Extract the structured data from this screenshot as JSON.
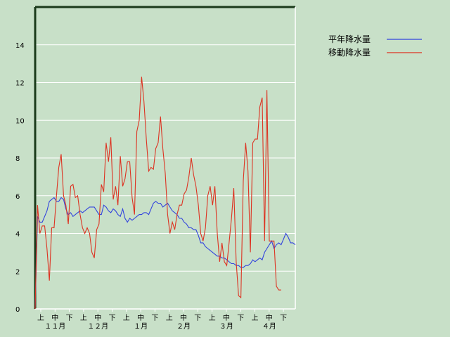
{
  "chart_data": {
    "type": "line",
    "title": "",
    "xlabel": "",
    "ylabel": "",
    "ylim": [
      0,
      16
    ],
    "yticks": [
      0,
      2,
      4,
      6,
      8,
      10,
      12,
      14
    ],
    "grid": true,
    "legend_position": "top-right",
    "x_sub_labels": [
      "上",
      "中",
      "下",
      "上",
      "中",
      "下",
      "上",
      "中",
      "下",
      "上",
      "中",
      "下",
      "上",
      "中",
      "下",
      "上",
      "中",
      "下"
    ],
    "x_month_labels": [
      "１１月",
      "１２月",
      "１月",
      "２月",
      "３月",
      "４月"
    ],
    "series": [
      {
        "name": "平年降水量",
        "color": "#3344dd",
        "values": [
          0.0,
          4.9,
          4.6,
          4.6,
          4.9,
          5.2,
          5.7,
          5.8,
          5.9,
          5.7,
          5.7,
          5.9,
          5.8,
          5.3,
          5.0,
          5.1,
          4.9,
          5.0,
          5.1,
          5.2,
          5.1,
          5.2,
          5.3,
          5.4,
          5.4,
          5.4,
          5.2,
          5.0,
          5.0,
          5.5,
          5.4,
          5.2,
          5.1,
          5.3,
          5.2,
          5.0,
          4.9,
          5.3,
          4.8,
          4.6,
          4.8,
          4.7,
          4.8,
          4.9,
          5.0,
          5.0,
          5.1,
          5.1,
          5.0,
          5.3,
          5.6,
          5.7,
          5.6,
          5.6,
          5.4,
          5.5,
          5.6,
          5.4,
          5.2,
          5.1,
          5.0,
          4.8,
          4.8,
          4.6,
          4.5,
          4.3,
          4.3,
          4.2,
          4.2,
          3.9,
          3.5,
          3.5,
          3.3,
          3.2,
          3.1,
          3.0,
          2.9,
          2.8,
          2.8,
          2.7,
          2.7,
          2.6,
          2.5,
          2.4,
          2.4,
          2.3,
          2.3,
          2.2,
          2.2,
          2.3,
          2.3,
          2.4,
          2.6,
          2.5,
          2.6,
          2.7,
          2.6,
          3.0,
          3.2,
          3.4,
          3.6,
          3.2,
          3.4,
          3.5,
          3.4,
          3.7,
          4.0,
          3.8,
          3.5,
          3.5,
          3.4
        ]
      },
      {
        "name": "移動降水量",
        "color": "#dd3322",
        "values": [
          0.0,
          5.5,
          4.0,
          4.4,
          4.4,
          3.2,
          1.5,
          4.3,
          4.3,
          6.0,
          7.5,
          8.2,
          6.0,
          5.5,
          4.5,
          6.5,
          6.6,
          5.9,
          6.0,
          5.0,
          4.3,
          4.0,
          4.3,
          4.0,
          3.0,
          2.7,
          4.2,
          4.5,
          6.6,
          6.2,
          8.8,
          7.8,
          9.1,
          5.8,
          6.5,
          5.5,
          8.1,
          6.5,
          6.9,
          7.8,
          7.8,
          5.9,
          5.0,
          9.4,
          10.0,
          12.3,
          11.0,
          9.0,
          7.3,
          7.5,
          7.4,
          8.5,
          8.8,
          10.2,
          8.5,
          7.2,
          5.0,
          4.0,
          4.6,
          4.2,
          5.0,
          5.5,
          5.5,
          6.1,
          6.3,
          7.0,
          8.0,
          7.1,
          6.5,
          5.5,
          4.0,
          3.6,
          4.3,
          6.0,
          6.5,
          5.5,
          6.5,
          4.0,
          2.5,
          3.5,
          2.5,
          2.3,
          3.5,
          4.8,
          6.4,
          2.5,
          0.7,
          0.6,
          6.8,
          8.8,
          7.3,
          3.0,
          8.8,
          9.0,
          9.0,
          10.7,
          11.2,
          3.6,
          11.6,
          3.6,
          3.6,
          3.6,
          1.2,
          1.0,
          1.0
        ]
      }
    ]
  }
}
